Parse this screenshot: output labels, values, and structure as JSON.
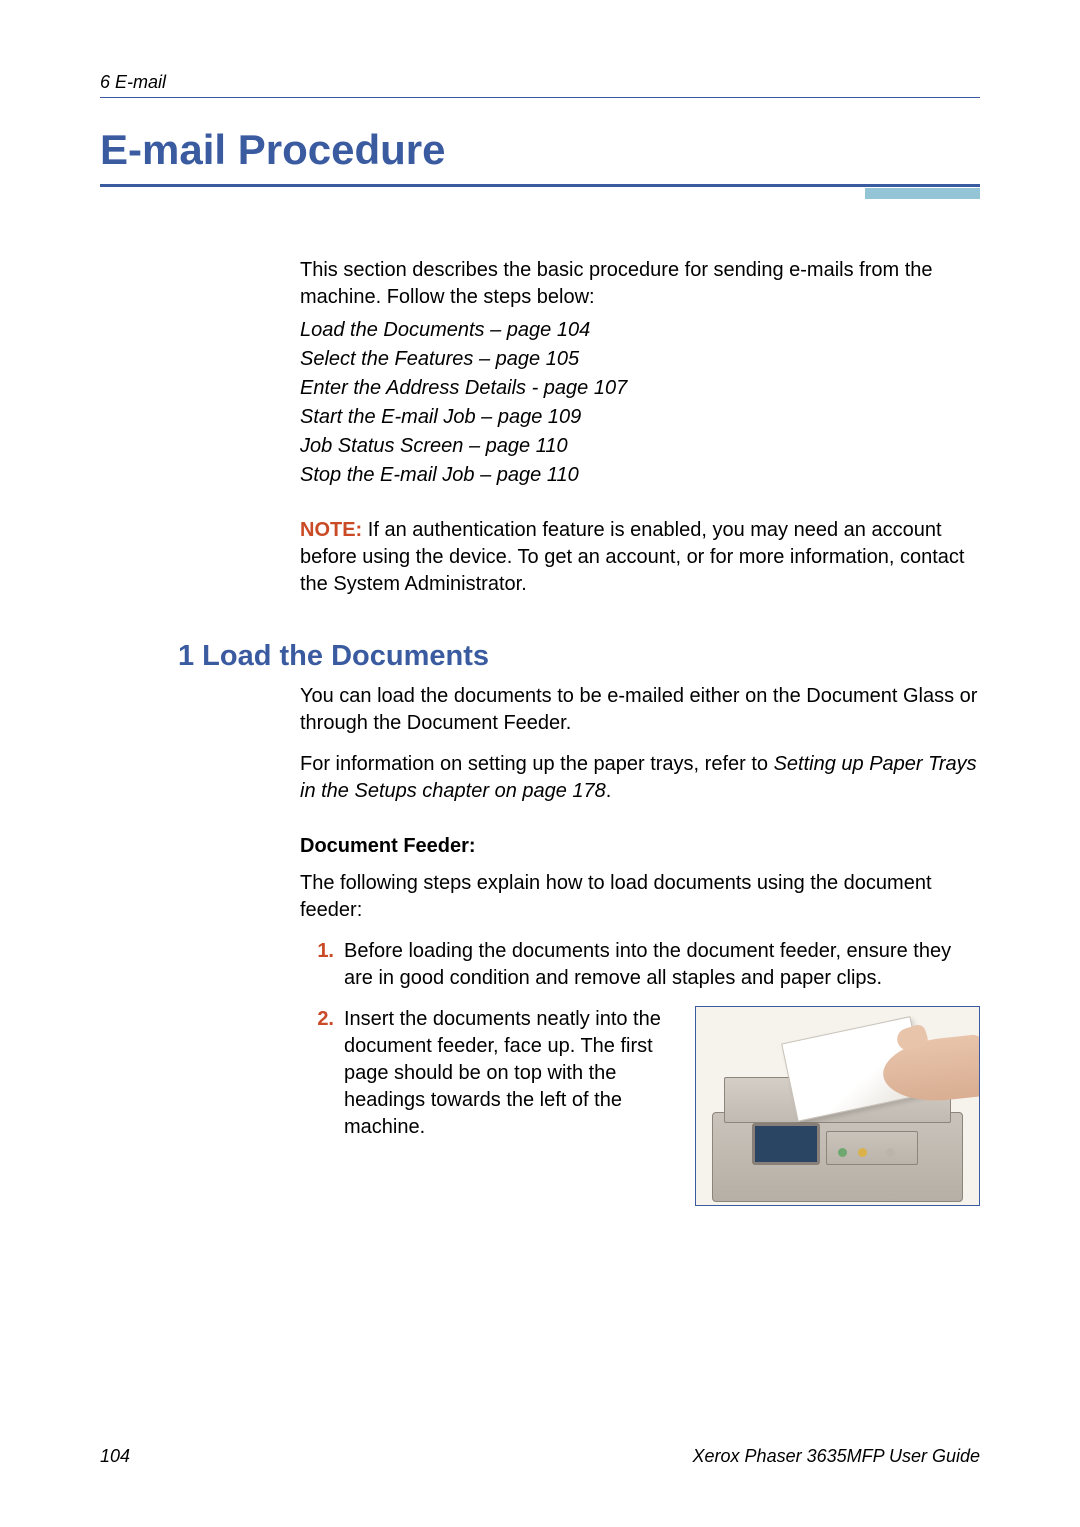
{
  "header": {
    "chapter_label": "6  E-mail"
  },
  "title": "E-mail Procedure",
  "intro": "This section describes the basic procedure for sending e-mails from the machine. Follow the steps below:",
  "steps_list": [
    "Load the Documents – page 104",
    "Select the Features – page 105",
    "Enter the Address Details - page 107",
    "Start the E-mail Job – page 109",
    "Job Status Screen – page 110",
    "Stop the E-mail Job – page 110"
  ],
  "note": {
    "label": "NOTE:",
    "text": " If an authentication feature is enabled, you may need an account before using the device. To get an account, or for more information, contact the System Administrator."
  },
  "section1": {
    "heading": "1 Load the Documents",
    "p1": "You can load the documents to be e-mailed either on the Document Glass or through the Document Feeder.",
    "p2_prefix": "For information on setting up the paper trays, refer to ",
    "p2_italic": "Setting up Paper Trays in the Setups chapter on page 178",
    "p2_suffix": ".",
    "subheading": "Document Feeder:",
    "p3": "The following steps explain how to load documents using the document feeder:",
    "steps": {
      "s1_num": "1.",
      "s1": "Before loading the documents into the document feeder, ensure they are in good condition and remove all staples and paper clips.",
      "s2_num": "2.",
      "s2": "Insert the documents neatly into the document feeder, face up. The first page should be on top with the headings towards the left of the machine."
    }
  },
  "footer": {
    "page_num": "104",
    "doc_title": "Xerox Phaser 3635MFP User Guide"
  },
  "colors": {
    "accent_blue": "#3a5ba0",
    "accent_teal": "#94c5d6",
    "accent_orange": "#ca4a25"
  }
}
